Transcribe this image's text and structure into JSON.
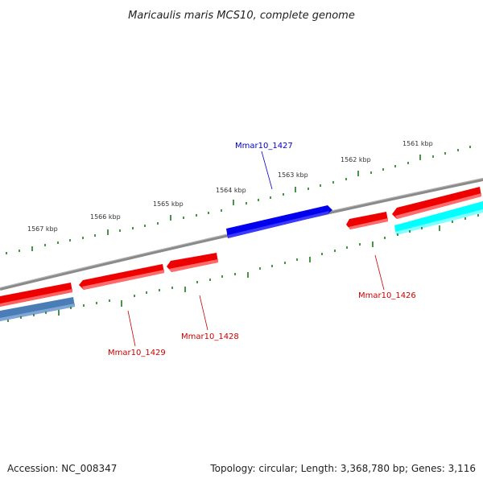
{
  "title": "Maricaulis maris MCS10, complete genome",
  "accession": "Accession: NC_008347",
  "summary": "Topology: circular; Length: 3,368,780 bp; Genes: 3,116",
  "scale_labels": [
    "1561 kbp",
    "1562 kbp",
    "1563 kbp",
    "1564 kbp",
    "1565 kbp",
    "1566 kbp",
    "1567 kbp"
  ],
  "genes": [
    {
      "name": "Mmar10_1427",
      "color": "#0000cc"
    },
    {
      "name": "Mmar10_1426",
      "color": "#cc0000"
    },
    {
      "name": "Mmar10_1428",
      "color": "#cc0000"
    },
    {
      "name": "Mmar10_1429",
      "color": "#cc0000"
    }
  ],
  "colors": {
    "backbone": "#808080",
    "tick": "#1a7a1a",
    "gene_red": "#ff0000",
    "gene_blue": "#0000ee",
    "gene_cyan": "#00ffff",
    "gene_steel": "#4a7db5"
  }
}
